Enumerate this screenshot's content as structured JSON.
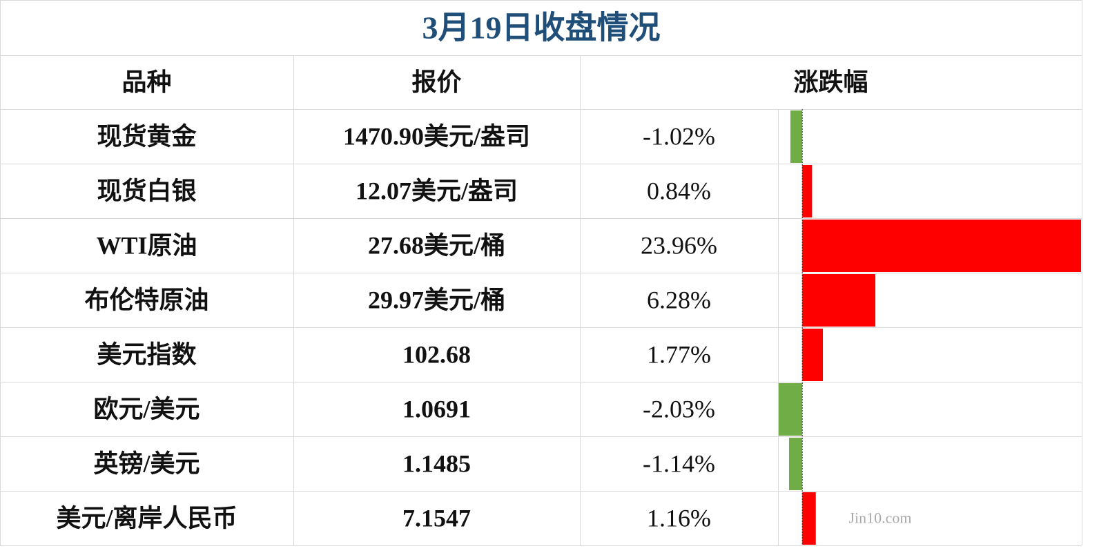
{
  "title": "3月19日收盘情况",
  "table": {
    "headers": [
      "品种",
      "报价",
      "涨跌幅"
    ],
    "rows": [
      {
        "name": "现货黄金",
        "price": "1470.90美元/盎司",
        "change": {
          "value": -1.02,
          "label": "-1.02%"
        }
      },
      {
        "name": "现货白银",
        "price": "12.07美元/盎司",
        "change": {
          "value": 0.84,
          "label": "0.84%"
        }
      },
      {
        "name": "WTI原油",
        "price": "27.68美元/桶",
        "change": {
          "value": 23.96,
          "label": "23.96%"
        }
      },
      {
        "name": "布伦特原油",
        "price": "29.97美元/桶",
        "change": {
          "value": 6.28,
          "label": "6.28%"
        }
      },
      {
        "name": "美元指数",
        "price": "102.68",
        "change": {
          "value": 1.77,
          "label": "1.77%"
        }
      },
      {
        "name": "欧元/美元",
        "price": "1.0691",
        "change": {
          "value": -2.03,
          "label": "-2.03%"
        }
      },
      {
        "name": "英镑/美元",
        "price": "1.1485",
        "change": {
          "value": -1.14,
          "label": "-1.14%"
        }
      },
      {
        "name": "美元/离岸人民币",
        "price": "7.1547",
        "change": {
          "value": 1.16,
          "label": "1.16%"
        }
      }
    ],
    "colors": {
      "positive": "#ff0000",
      "negative": "#70ad47"
    }
  },
  "watermark": "Jin10.com"
}
